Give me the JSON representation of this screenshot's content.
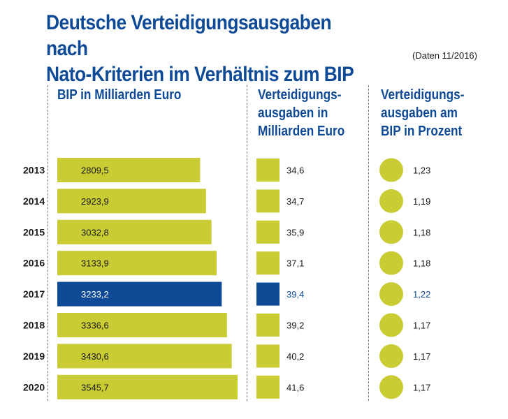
{
  "title_line1": "Deutsche Verteidigungsausgaben nach",
  "title_line2": "Nato-Kriterien im Verhältnis zum BIP",
  "note": "(Daten 11/2016)",
  "headers": {
    "bip": "BIP in Milliarden Euro",
    "verteidigung": [
      "Verteidigungs-",
      "ausgaben in",
      "Milliarden Euro"
    ],
    "prozent": [
      "Verteidigungs-",
      "ausgaben am",
      "BIP in Prozent"
    ]
  },
  "colors": {
    "normal": "#c9cc33",
    "highlight": "#0f4a96",
    "text_highlight": "#0f4a96"
  },
  "chart_data": {
    "type": "table",
    "categories": [
      "2013",
      "2014",
      "2015",
      "2016",
      "2017",
      "2018",
      "2019",
      "2020"
    ],
    "highlight": "2017",
    "series": [
      {
        "name": "BIP in Milliarden Euro",
        "values": [
          2809.5,
          2923.9,
          3032.8,
          3133.9,
          3233.2,
          3336.6,
          3430.6,
          3545.7
        ],
        "labels": [
          "2809,5",
          "2923,9",
          "3032,8",
          "3133,9",
          "3233,2",
          "3336,6",
          "3430,6",
          "3545,7"
        ]
      },
      {
        "name": "Verteidigungsausgaben in Milliarden Euro",
        "values": [
          34.6,
          34.7,
          35.9,
          37.1,
          39.4,
          39.2,
          40.2,
          41.6
        ],
        "labels": [
          "34,6",
          "34,7",
          "35,9",
          "37,1",
          "39,4",
          "39,2",
          "40,2",
          "41,6"
        ]
      },
      {
        "name": "Verteidigungsausgaben am BIP in Prozent",
        "values": [
          1.23,
          1.19,
          1.18,
          1.18,
          1.22,
          1.17,
          1.17,
          1.17
        ],
        "labels": [
          "1,23",
          "1,19",
          "1,18",
          "1,18",
          "1,22",
          "1,17",
          "1,17",
          "1,17"
        ]
      }
    ]
  }
}
